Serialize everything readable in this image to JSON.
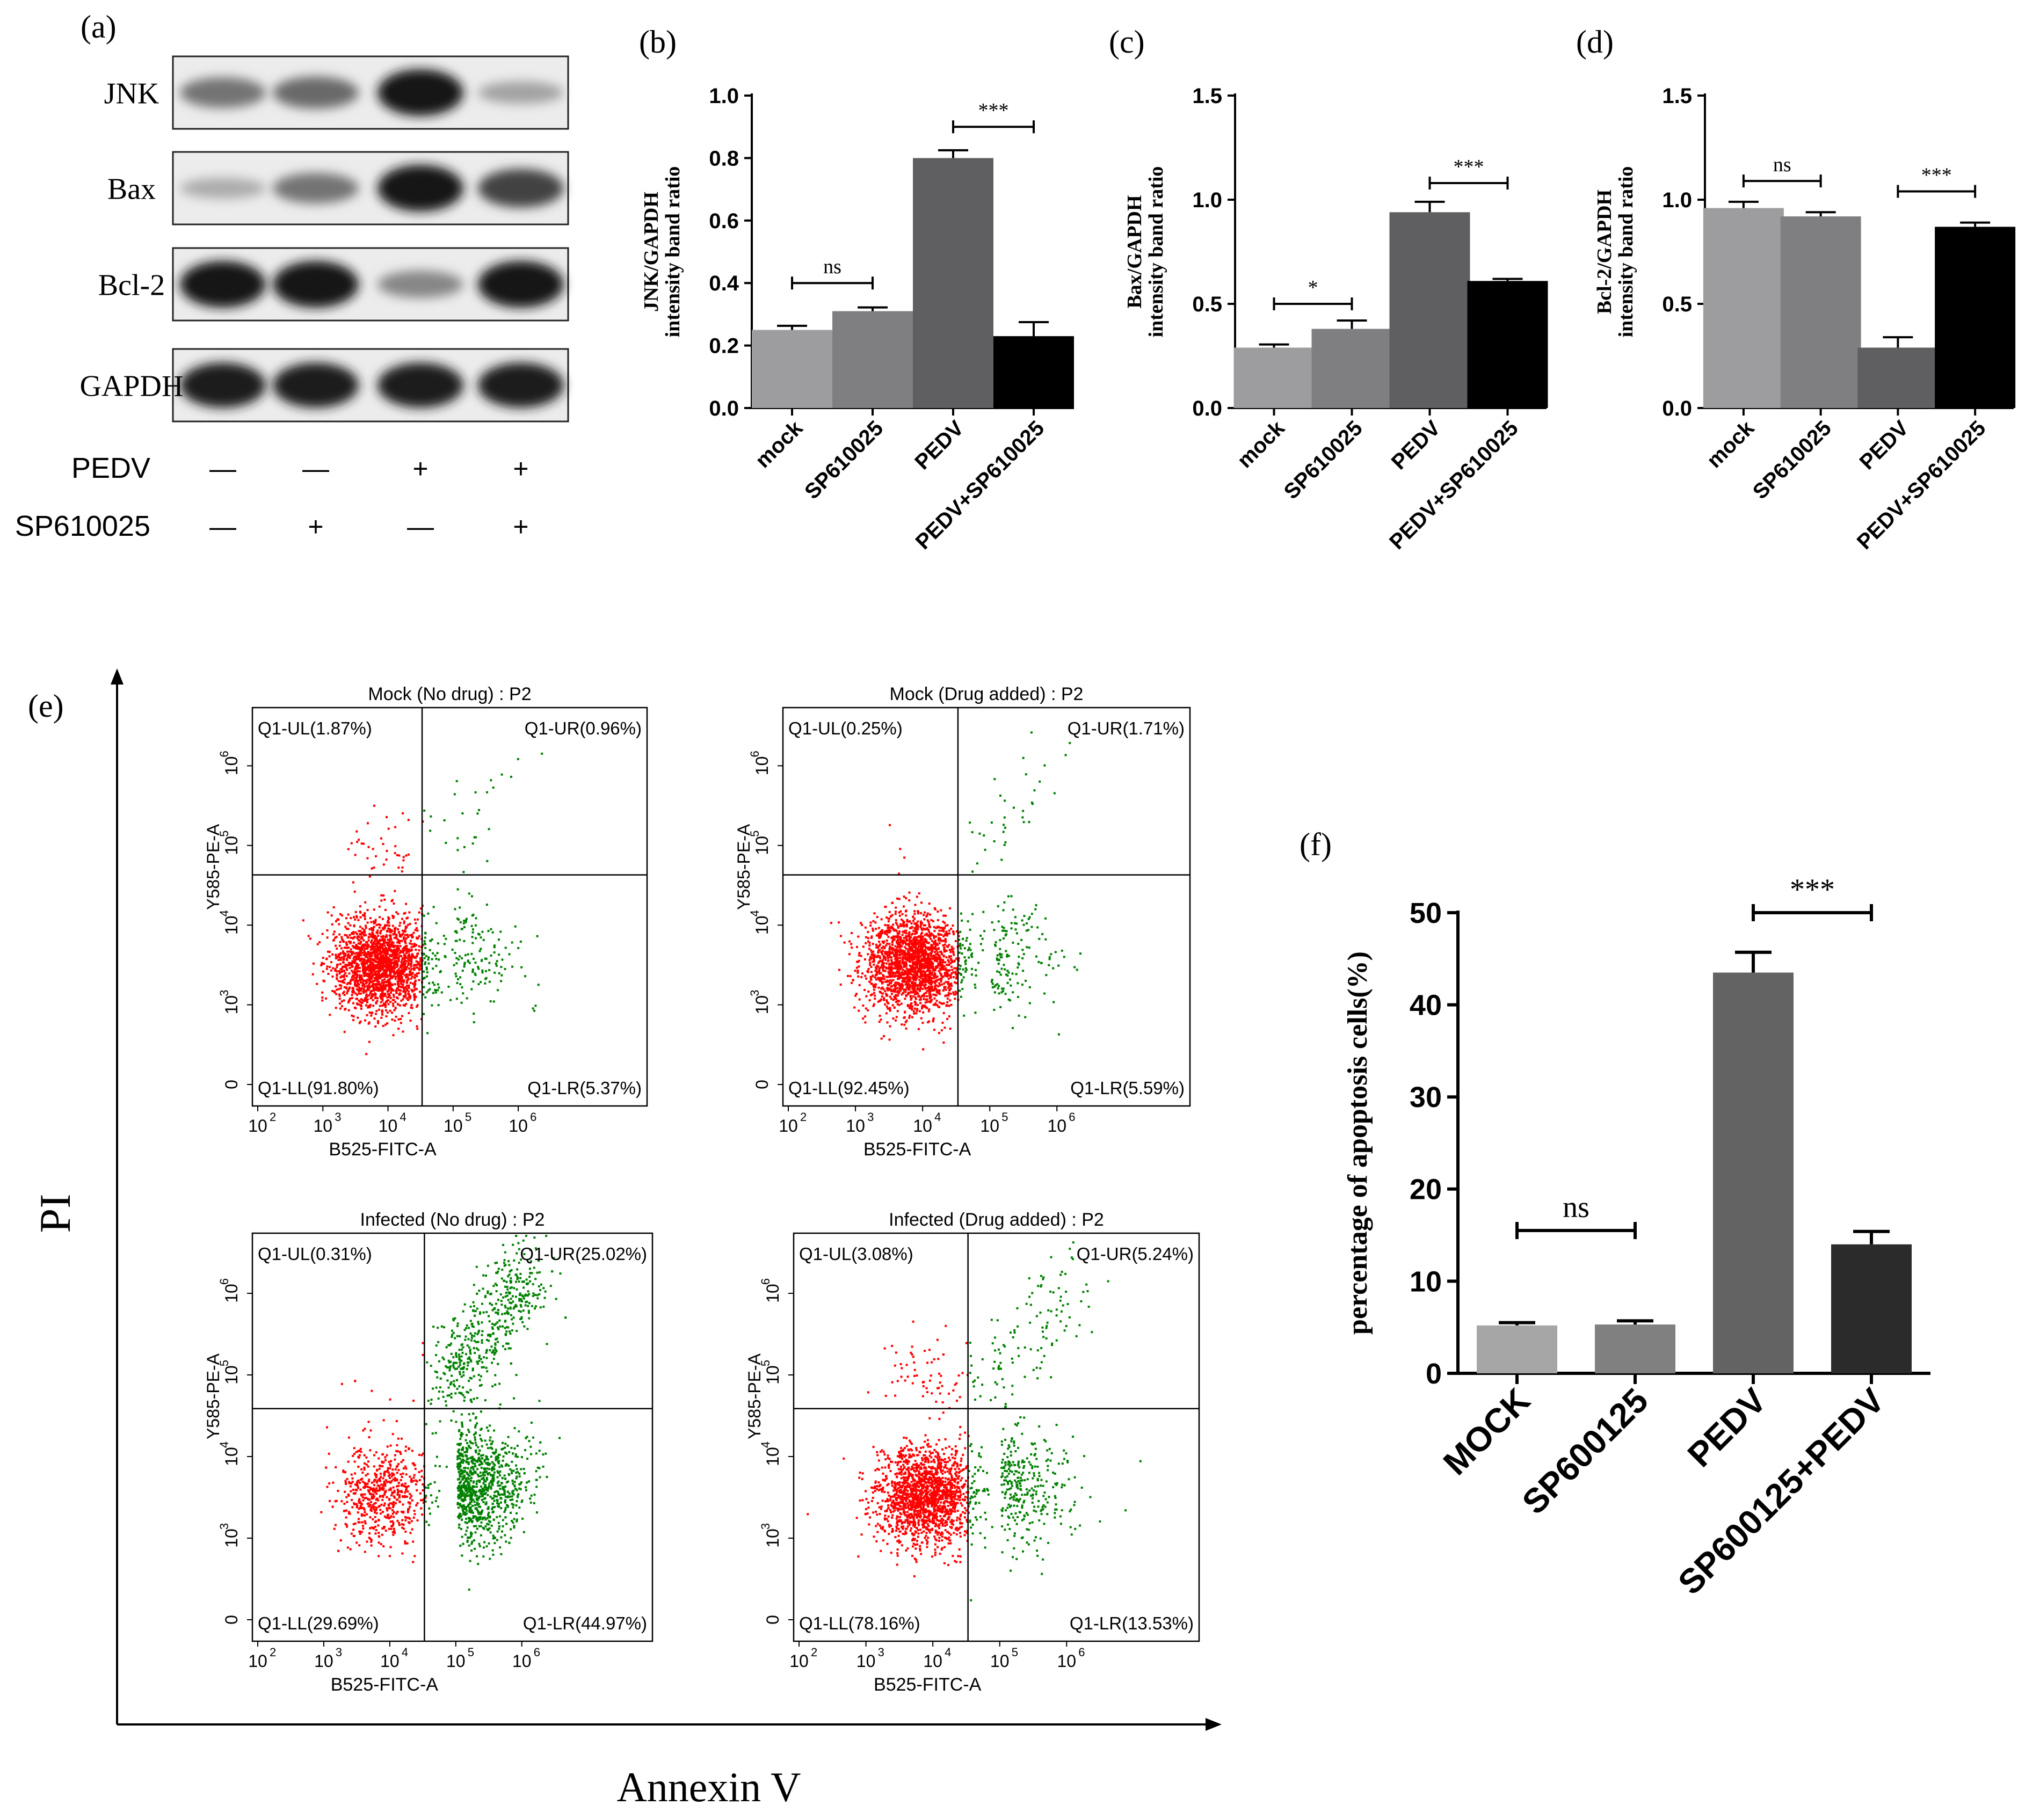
{
  "panels": {
    "a": "(a)",
    "b": "(b)",
    "c": "(c)",
    "d": "(d)",
    "e": "(e)",
    "f": "(f)"
  },
  "western_blot": {
    "bands": [
      {
        "name": "JNK",
        "intensities": [
          0.45,
          0.5,
          0.95,
          0.2
        ]
      },
      {
        "name": "Bax",
        "intensities": [
          0.15,
          0.45,
          0.95,
          0.7
        ]
      },
      {
        "name": "Bcl-2",
        "intensities": [
          0.95,
          0.95,
          0.35,
          0.95
        ]
      },
      {
        "name": "GAPDH",
        "intensities": [
          0.9,
          0.9,
          0.9,
          0.9
        ]
      }
    ],
    "treatments": [
      {
        "label": "PEDV",
        "signs": [
          "—",
          "—",
          "+",
          "+"
        ]
      },
      {
        "label": "SP610025",
        "signs": [
          "—",
          "+",
          "—",
          "+"
        ]
      }
    ]
  },
  "chart_data": [
    {
      "id": "b",
      "type": "bar",
      "categories": [
        "mock",
        "SP610025",
        "PEDV",
        "PEDV+SP610025"
      ],
      "values": [
        0.25,
        0.31,
        0.8,
        0.23
      ],
      "errors": [
        0.013,
        0.012,
        0.025,
        0.045
      ],
      "colors": [
        "#9d9d9f",
        "#7f7f81",
        "#5f5f61",
        "#000000"
      ],
      "ylabel_line1": "JNK/GAPDH",
      "ylabel_line2": "intensity band ratio",
      "ylim": [
        0,
        1.0
      ],
      "ticks": [
        0.0,
        0.2,
        0.4,
        0.6,
        0.8,
        1.0
      ],
      "tick_labels": [
        "0.0",
        "0.2",
        "0.4",
        "0.6",
        "0.8",
        "1.0"
      ],
      "comparisons": [
        {
          "from": 0,
          "to": 1,
          "label": "ns",
          "y": 0.4
        },
        {
          "from": 2,
          "to": 3,
          "label": "***",
          "y": 0.9
        }
      ]
    },
    {
      "id": "c",
      "type": "bar",
      "categories": [
        "mock",
        "SP610025",
        "PEDV",
        "PEDV+SP610025"
      ],
      "values": [
        0.29,
        0.38,
        0.94,
        0.61
      ],
      "errors": [
        0.015,
        0.04,
        0.05,
        0.01
      ],
      "colors": [
        "#9d9d9f",
        "#7f7f81",
        "#5f5f61",
        "#000000"
      ],
      "ylabel_line1": "Bax/GAPDH",
      "ylabel_line2": "intensity band ratio",
      "ylim": [
        0,
        1.5
      ],
      "ticks": [
        0.0,
        0.5,
        1.0,
        1.5
      ],
      "tick_labels": [
        "0.0",
        "0.5",
        "1.0",
        "1.5"
      ],
      "comparisons": [
        {
          "from": 0,
          "to": 1,
          "label": "*",
          "y": 0.5
        },
        {
          "from": 2,
          "to": 3,
          "label": "***",
          "y": 1.08
        }
      ]
    },
    {
      "id": "d",
      "type": "bar",
      "categories": [
        "mock",
        "SP610025",
        "PEDV",
        "PEDV+SP610025"
      ],
      "values": [
        0.96,
        0.92,
        0.29,
        0.87
      ],
      "errors": [
        0.03,
        0.02,
        0.05,
        0.02
      ],
      "colors": [
        "#9d9d9f",
        "#7f7f81",
        "#5f5f61",
        "#000000"
      ],
      "ylabel_line1": "Bcl-2/GAPDH",
      "ylabel_line2": "intensity band ratio",
      "ylim": [
        0,
        1.5
      ],
      "ticks": [
        0.0,
        0.5,
        1.0,
        1.5
      ],
      "tick_labels": [
        "0.0",
        "0.5",
        "1.0",
        "1.5"
      ],
      "comparisons": [
        {
          "from": 0,
          "to": 1,
          "label": "ns",
          "y": 1.09
        },
        {
          "from": 2,
          "to": 3,
          "label": "***",
          "y": 1.04
        }
      ]
    },
    {
      "id": "f",
      "type": "bar",
      "categories": [
        "MOCK",
        "SP600125",
        "PEDV",
        "SP600125+PEDV"
      ],
      "values": [
        5.2,
        5.3,
        43.5,
        14.0
      ],
      "errors": [
        0.3,
        0.4,
        2.2,
        1.4
      ],
      "colors": [
        "#a6a6a6",
        "#808080",
        "#636363",
        "#2b2b2b"
      ],
      "ylabel": "percentage of apoptosis cells(%)",
      "ylim": [
        0,
        50
      ],
      "ticks": [
        0,
        10,
        20,
        30,
        40,
        50
      ],
      "tick_labels": [
        "0",
        "10",
        "20",
        "30",
        "40",
        "50"
      ],
      "comparisons": [
        {
          "from": 0,
          "to": 1,
          "label": "ns",
          "y": 15.5
        },
        {
          "from": 2,
          "to": 3,
          "label": "***",
          "y": 50.0
        }
      ]
    },
    {
      "id": "e",
      "type": "scatter",
      "x_axis_title": "Annexin V",
      "y_axis_title": "PI",
      "plots": [
        {
          "title": "Mock (No drug) : P2",
          "quadrants": [
            "Q1-UL(1.87%)",
            "Q1-UR(0.96%)",
            "Q1-LL(91.80%)",
            "Q1-LR(5.37%)"
          ],
          "percent": [
            1.87,
            0.96,
            91.8,
            5.37
          ]
        },
        {
          "title": "Mock (Drug added) : P2",
          "quadrants": [
            "Q1-UL(0.25%)",
            "Q1-UR(1.71%)",
            "Q1-LL(92.45%)",
            "Q1-LR(5.59%)"
          ],
          "percent": [
            0.25,
            1.71,
            92.45,
            5.59
          ]
        },
        {
          "title": "Infected (No drug) : P2",
          "quadrants": [
            "Q1-UL(0.31%)",
            "Q1-UR(25.02%)",
            "Q1-LL(29.69%)",
            "Q1-LR(44.97%)"
          ],
          "percent": [
            0.31,
            25.02,
            29.69,
            44.97
          ]
        },
        {
          "title": "Infected (Drug added) : P2",
          "quadrants": [
            "Q1-UL(3.08%)",
            "Q1-UR(5.24%)",
            "Q1-LL(78.16%)",
            "Q1-LR(13.53%)"
          ],
          "percent": [
            3.08,
            5.24,
            78.16,
            13.53
          ]
        }
      ],
      "xlabel": "B525-FITC-A",
      "ylabel": "Y585-PE-A",
      "x_tick_labels": [
        "10",
        "10",
        "10",
        "10",
        "10"
      ],
      "x_tick_exps": [
        "2",
        "3",
        "4",
        "5",
        "6"
      ],
      "y_tick_labels": [
        "0",
        "10",
        "10",
        "10",
        "10"
      ],
      "y_tick_exps": [
        "",
        "3",
        "4",
        "5",
        "6"
      ],
      "gate_color_live": "#ff0000",
      "gate_color_apoptotic": "#008000"
    }
  ]
}
